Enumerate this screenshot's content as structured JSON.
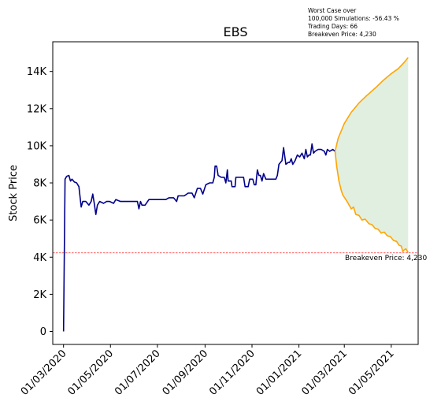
{
  "chart_data": {
    "type": "line",
    "title": "EBS",
    "xlabel": "",
    "ylabel": "Stock Price",
    "xlim": [
      "2020-02-16",
      "2021-06-05"
    ],
    "ylim": [
      -700,
      15600
    ],
    "grid": false,
    "x_ticks": [
      "2020-03-01",
      "2020-05-01",
      "2020-07-01",
      "2020-09-01",
      "2020-11-01",
      "2021-01-01",
      "2021-03-01",
      "2021-05-01"
    ],
    "x_tick_labels": [
      "01/03/2020",
      "01/05/2020",
      "01/07/2020",
      "01/09/2020",
      "01/11/2020",
      "01/01/2021",
      "01/03/2021",
      "01/05/2021"
    ],
    "y_ticks": [
      0,
      2000,
      4000,
      6000,
      8000,
      10000,
      12000,
      14000
    ],
    "y_tick_labels": [
      "0",
      "2K",
      "4K",
      "6K",
      "8K",
      "10K",
      "12K",
      "14K"
    ],
    "annotation_lines": [
      "Worst Case over",
      "100,000 Simulations: -56.43 %",
      "Trading Days: 66",
      "Breakeven Price: 4,230"
    ],
    "breakeven": {
      "value": 4230,
      "label": "Breakeven Price: 4,230",
      "color": "#ff0000"
    },
    "series": [
      {
        "color": "#00008b",
        "points": [
          [
            "2020-03-01",
            0
          ],
          [
            "2020-03-03",
            8200
          ],
          [
            "2020-03-05",
            8350
          ],
          [
            "2020-03-08",
            8400
          ],
          [
            "2020-03-10",
            8100
          ],
          [
            "2020-03-12",
            8200
          ],
          [
            "2020-03-15",
            8050
          ],
          [
            "2020-03-18",
            8000
          ],
          [
            "2020-03-21",
            7800
          ],
          [
            "2020-03-24",
            6700
          ],
          [
            "2020-03-26",
            7000
          ],
          [
            "2020-03-30",
            7000
          ],
          [
            "2020-04-03",
            6800
          ],
          [
            "2020-04-06",
            7000
          ],
          [
            "2020-04-08",
            7400
          ],
          [
            "2020-04-10",
            6900
          ],
          [
            "2020-04-12",
            6300
          ],
          [
            "2020-04-14",
            6800
          ],
          [
            "2020-04-17",
            7000
          ],
          [
            "2020-04-22",
            6900
          ],
          [
            "2020-04-26",
            7000
          ],
          [
            "2020-04-30",
            7000
          ],
          [
            "2020-05-05",
            6900
          ],
          [
            "2020-05-08",
            7100
          ],
          [
            "2020-05-14",
            7000
          ],
          [
            "2020-05-22",
            7000
          ],
          [
            "2020-05-30",
            7000
          ],
          [
            "2020-06-05",
            7000
          ],
          [
            "2020-06-07",
            6600
          ],
          [
            "2020-06-09",
            7000
          ],
          [
            "2020-06-11",
            6800
          ],
          [
            "2020-06-15",
            6800
          ],
          [
            "2020-06-20",
            7100
          ],
          [
            "2020-06-28",
            7100
          ],
          [
            "2020-07-05",
            7100
          ],
          [
            "2020-07-12",
            7100
          ],
          [
            "2020-07-16",
            7200
          ],
          [
            "2020-07-22",
            7200
          ],
          [
            "2020-07-26",
            7000
          ],
          [
            "2020-07-28",
            7300
          ],
          [
            "2020-08-05",
            7300
          ],
          [
            "2020-08-10",
            7450
          ],
          [
            "2020-08-15",
            7450
          ],
          [
            "2020-08-18",
            7200
          ],
          [
            "2020-08-22",
            7700
          ],
          [
            "2020-08-26",
            7700
          ],
          [
            "2020-08-29",
            7400
          ],
          [
            "2020-09-02",
            7900
          ],
          [
            "2020-09-07",
            8000
          ],
          [
            "2020-09-11",
            8000
          ],
          [
            "2020-09-13",
            8300
          ],
          [
            "2020-09-14",
            8900
          ],
          [
            "2020-09-16",
            8900
          ],
          [
            "2020-09-18",
            8400
          ],
          [
            "2020-09-22",
            8300
          ],
          [
            "2020-09-26",
            8300
          ],
          [
            "2020-09-28",
            8000
          ],
          [
            "2020-09-30",
            8700
          ],
          [
            "2020-10-01",
            8100
          ],
          [
            "2020-10-05",
            8100
          ],
          [
            "2020-10-06",
            7800
          ],
          [
            "2020-10-10",
            7800
          ],
          [
            "2020-10-11",
            8300
          ],
          [
            "2020-10-15",
            8300
          ],
          [
            "2020-10-21",
            8300
          ],
          [
            "2020-10-23",
            7800
          ],
          [
            "2020-10-27",
            7800
          ],
          [
            "2020-10-29",
            8200
          ],
          [
            "2020-11-02",
            8200
          ],
          [
            "2020-11-04",
            7900
          ],
          [
            "2020-11-06",
            7900
          ],
          [
            "2020-11-08",
            8700
          ],
          [
            "2020-11-10",
            8400
          ],
          [
            "2020-11-12",
            8400
          ],
          [
            "2020-11-14",
            8100
          ],
          [
            "2020-11-16",
            8500
          ],
          [
            "2020-11-19",
            8200
          ],
          [
            "2020-11-26",
            8200
          ],
          [
            "2020-12-02",
            8200
          ],
          [
            "2020-12-04",
            8400
          ],
          [
            "2020-12-06",
            9000
          ],
          [
            "2020-12-10",
            9200
          ],
          [
            "2020-12-12",
            9900
          ],
          [
            "2020-12-15",
            9000
          ],
          [
            "2020-12-18",
            9100
          ],
          [
            "2020-12-20",
            9100
          ],
          [
            "2020-12-22",
            9300
          ],
          [
            "2020-12-24",
            9000
          ],
          [
            "2020-12-27",
            9200
          ],
          [
            "2020-12-30",
            9500
          ],
          [
            "2021-01-02",
            9400
          ],
          [
            "2021-01-05",
            9600
          ],
          [
            "2021-01-08",
            9300
          ],
          [
            "2021-01-10",
            9800
          ],
          [
            "2021-01-12",
            9400
          ],
          [
            "2021-01-14",
            9500
          ],
          [
            "2021-01-16",
            9500
          ],
          [
            "2021-01-18",
            10100
          ],
          [
            "2021-01-20",
            9600
          ],
          [
            "2021-01-22",
            9700
          ],
          [
            "2021-01-26",
            9800
          ],
          [
            "2021-01-30",
            9800
          ],
          [
            "2021-02-03",
            9700
          ],
          [
            "2021-02-05",
            9500
          ],
          [
            "2021-02-07",
            9800
          ],
          [
            "2021-02-10",
            9700
          ],
          [
            "2021-02-14",
            9800
          ],
          [
            "2021-02-17",
            9700
          ]
        ]
      },
      {
        "color": "#ffa500",
        "points": [
          [
            "2021-02-17",
            9700
          ],
          [
            "2021-02-21",
            10400
          ],
          [
            "2021-03-01",
            11200
          ],
          [
            "2021-03-10",
            11800
          ],
          [
            "2021-03-20",
            12300
          ],
          [
            "2021-03-30",
            12700
          ],
          [
            "2021-04-10",
            13100
          ],
          [
            "2021-04-20",
            13500
          ],
          [
            "2021-04-30",
            13850
          ],
          [
            "2021-05-10",
            14150
          ],
          [
            "2021-05-17",
            14450
          ],
          [
            "2021-05-23",
            14750
          ]
        ]
      },
      {
        "color": "#ffa500",
        "points": [
          [
            "2021-02-17",
            9700
          ],
          [
            "2021-02-19",
            8900
          ],
          [
            "2021-02-22",
            8100
          ],
          [
            "2021-02-25",
            7600
          ],
          [
            "2021-02-27",
            7350
          ],
          [
            "2021-03-03",
            7100
          ],
          [
            "2021-03-06",
            6900
          ],
          [
            "2021-03-10",
            6600
          ],
          [
            "2021-03-13",
            6700
          ],
          [
            "2021-03-16",
            6300
          ],
          [
            "2021-03-20",
            6250
          ],
          [
            "2021-03-24",
            6000
          ],
          [
            "2021-03-28",
            6050
          ],
          [
            "2021-04-02",
            5800
          ],
          [
            "2021-04-06",
            5750
          ],
          [
            "2021-04-10",
            5550
          ],
          [
            "2021-04-14",
            5500
          ],
          [
            "2021-04-18",
            5300
          ],
          [
            "2021-04-22",
            5350
          ],
          [
            "2021-04-26",
            5150
          ],
          [
            "2021-04-30",
            5100
          ],
          [
            "2021-05-04",
            4900
          ],
          [
            "2021-05-08",
            4850
          ],
          [
            "2021-05-11",
            4650
          ],
          [
            "2021-05-14",
            4600
          ],
          [
            "2021-05-16",
            4300
          ],
          [
            "2021-05-18",
            4400
          ],
          [
            "2021-05-20",
            4450
          ],
          [
            "2021-05-23",
            4250
          ]
        ]
      }
    ],
    "band": {
      "color": "#d7ead7",
      "between_series": [
        1,
        2
      ]
    }
  }
}
